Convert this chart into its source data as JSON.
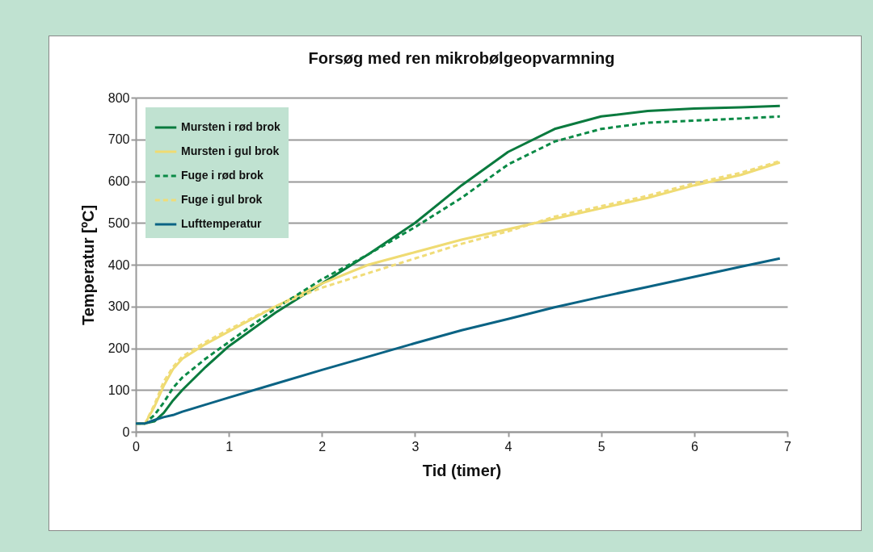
{
  "chart_data": {
    "type": "line",
    "title": "Forsøg med ren mikrobølgeopvarmning",
    "xlabel": "Tid (timer)",
    "ylabel": "Temperatur [ºC]",
    "x": [
      0,
      0.1,
      0.2,
      0.3,
      0.4,
      0.5,
      0.75,
      1,
      1.5,
      2,
      2.5,
      3,
      3.5,
      4,
      4.5,
      5,
      5.5,
      6,
      6.5,
      6.92
    ],
    "series": [
      {
        "name": "Mursten i rød brok",
        "color": "#0a7a3e",
        "line_style": "solid",
        "values": [
          20,
          20,
          25,
          45,
          75,
          100,
          155,
          205,
          285,
          355,
          425,
          500,
          590,
          670,
          725,
          755,
          768,
          774,
          777,
          780
        ]
      },
      {
        "name": "Mursten i gul brok",
        "color": "#efdb72",
        "line_style": "solid",
        "values": [
          20,
          20,
          60,
          110,
          150,
          175,
          210,
          240,
          300,
          355,
          400,
          430,
          460,
          485,
          510,
          535,
          560,
          590,
          615,
          645
        ]
      },
      {
        "name": "Fuge i rød brok",
        "color": "#0a8a46",
        "line_style": "dashed",
        "values": [
          20,
          20,
          40,
          70,
          105,
          130,
          175,
          215,
          295,
          365,
          425,
          490,
          560,
          640,
          695,
          725,
          740,
          745,
          750,
          755
        ]
      },
      {
        "name": "Fuge i gul brok",
        "color": "#f0dc78",
        "line_style": "dashed",
        "values": [
          20,
          20,
          65,
          120,
          155,
          180,
          215,
          245,
          300,
          345,
          380,
          415,
          450,
          480,
          515,
          540,
          565,
          595,
          620,
          648
        ]
      },
      {
        "name": "Lufttemperatur",
        "color": "#0a6384",
        "line_style": "solid",
        "values": [
          20,
          20,
          28,
          35,
          40,
          48,
          65,
          82,
          115,
          148,
          180,
          212,
          243,
          270,
          298,
          323,
          347,
          371,
          395,
          415
        ]
      }
    ],
    "xlim": [
      0,
      7
    ],
    "xticks": [
      0,
      1,
      2,
      3,
      4,
      5,
      6,
      7
    ],
    "ylim": [
      0,
      800
    ],
    "yticks": [
      0,
      100,
      200,
      300,
      400,
      500,
      600,
      700,
      800
    ],
    "grid": "y",
    "legend": "top left",
    "marker": "none"
  }
}
